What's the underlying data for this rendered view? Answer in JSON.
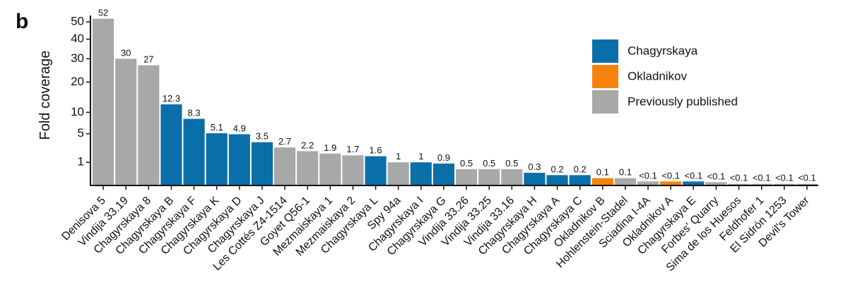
{
  "chart_data": {
    "type": "bar",
    "panel_label": "b",
    "y_label": "Fold coverage",
    "y_scale": "sqrt",
    "ylim": [
      0,
      54
    ],
    "yticks": [
      1,
      5,
      10,
      20,
      30,
      40,
      50
    ],
    "categories": [
      "Denisova 5",
      "Vindija 33.19",
      "Chagyrskaya 8",
      "Chagyrskaya B",
      "Chagyrskaya F",
      "Chagyrskaya K",
      "Chagyrskaya D",
      "Chagyrskaya J",
      "Les Cottés Z4-1514",
      "Goyet Q56-1",
      "Mezmaiskaya 1",
      "Mezmaiskaya 2",
      "Chagyrskaya L",
      "Spy 94a",
      "Chagyrskaya I",
      "Chagyrskaya G",
      "Vindija 33.26",
      "Vindija 33.25",
      "Vindija 33.16",
      "Chagyrskaya H",
      "Chagyrskaya A",
      "Chagyrskaya C",
      "Okladnikov B",
      "Hohlenstein-Stadel",
      "Sciadina I-4A",
      "Okladnikov A",
      "Chagyrskaya E",
      "Forbes' Quarry",
      "Sima de los Huesos",
      "Feldhofer 1",
      "El Sidrón 1253",
      "Devil's Tower"
    ],
    "values": [
      52,
      30,
      27,
      12.3,
      8.3,
      5.1,
      4.9,
      3.5,
      2.7,
      2.2,
      1.9,
      1.7,
      1.6,
      1,
      1,
      0.9,
      0.5,
      0.5,
      0.5,
      0.3,
      0.2,
      0.2,
      0.1,
      0.1,
      0.03,
      0.03,
      0.03,
      0.02,
      0.005,
      0.005,
      0.005,
      0.005
    ],
    "value_labels": [
      "52",
      "30",
      "27",
      "12.3",
      "8.3",
      "5.1",
      "4.9",
      "3.5",
      "2.7",
      "2.2",
      "1.9",
      "1.7",
      "1.6",
      "1",
      "1",
      "0.9",
      "0.5",
      "0.5",
      "0.5",
      "0.3",
      "0.2",
      "0.2",
      "0.1",
      "0.1",
      "<0.1",
      "<0.1",
      "<0.1",
      "<0.1",
      "<0.1",
      "<0.1",
      "<0.1",
      "<0.1"
    ],
    "groups": [
      2,
      2,
      2,
      0,
      0,
      0,
      0,
      0,
      2,
      2,
      2,
      2,
      0,
      2,
      0,
      0,
      2,
      2,
      2,
      0,
      0,
      0,
      1,
      2,
      2,
      1,
      0,
      2,
      2,
      2,
      2,
      2
    ],
    "legend": [
      {
        "name": "Chagyrskaya",
        "color": "#0a6fa8"
      },
      {
        "name": "Okladnikov",
        "color": "#f5820d"
      },
      {
        "name": "Previously published",
        "color": "#a8a8a8"
      }
    ],
    "legend_position": "upper right"
  }
}
